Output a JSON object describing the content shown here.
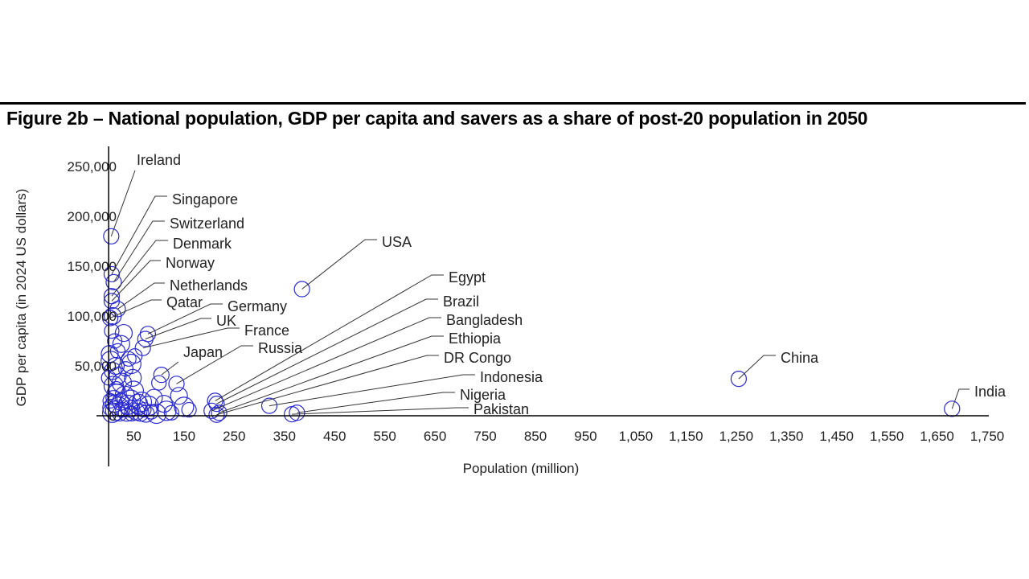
{
  "figure": {
    "title": "Figure 2b – National population, GDP per capita and savers as a share of post-20 population in 2050"
  },
  "colors": {
    "marker": "#2b2bd1",
    "axis": "#000000",
    "leader": "#333333"
  },
  "chart_data": {
    "type": "scatter",
    "title": "Figure 2b – National population, GDP per capita and savers as a share of post-20 population in 2050",
    "xlabel": "Population  (million)",
    "ylabel": "GDP per capita (in 2024 US dollars)",
    "xlim": [
      -50,
      1750
    ],
    "ylim": [
      0,
      250000
    ],
    "x_ticks": [
      "50",
      "150",
      "250",
      "350",
      "450",
      "550",
      "650",
      "750",
      "850",
      "950",
      "1,050",
      "1,150",
      "1,250",
      "1,350",
      "1,450",
      "1,550",
      "1,650",
      "1,750"
    ],
    "x_tick_values": [
      50,
      150,
      250,
      350,
      450,
      550,
      650,
      750,
      850,
      950,
      1050,
      1150,
      1250,
      1350,
      1450,
      1550,
      1650,
      1750
    ],
    "y_ticks": [
      "0",
      "50,000",
      "100,000",
      "150,000",
      "200,000",
      "250,000"
    ],
    "y_tick_values": [
      0,
      50000,
      100000,
      150000,
      200000,
      250000
    ],
    "grid": false,
    "legend": "none",
    "labeled_points": [
      {
        "name": "Ireland",
        "x": 5,
        "y": 180000
      },
      {
        "name": "Singapore",
        "x": 6,
        "y": 142000
      },
      {
        "name": "Switzerland",
        "x": 10,
        "y": 134000
      },
      {
        "name": "Denmark",
        "x": 6,
        "y": 120000
      },
      {
        "name": "Norway",
        "x": 6,
        "y": 115000
      },
      {
        "name": "Netherlands",
        "x": 18,
        "y": 107000
      },
      {
        "name": "Qatar",
        "x": 3,
        "y": 98000
      },
      {
        "name": "Germany",
        "x": 78,
        "y": 82000
      },
      {
        "name": "UK",
        "x": 73,
        "y": 77000
      },
      {
        "name": "France",
        "x": 68,
        "y": 68000
      },
      {
        "name": "Japan",
        "x": 105,
        "y": 41000
      },
      {
        "name": "Russia",
        "x": 135,
        "y": 32000
      },
      {
        "name": "USA",
        "x": 385,
        "y": 127000
      },
      {
        "name": "Egypt",
        "x": 212,
        "y": 15000
      },
      {
        "name": "Brazil",
        "x": 215,
        "y": 12000
      },
      {
        "name": "Bangladesh",
        "x": 205,
        "y": 5000
      },
      {
        "name": "Ethiopia",
        "x": 220,
        "y": 3000
      },
      {
        "name": "DR Congo",
        "x": 215,
        "y": 1000
      },
      {
        "name": "Indonesia",
        "x": 320,
        "y": 10000
      },
      {
        "name": "Nigeria",
        "x": 375,
        "y": 3000
      },
      {
        "name": "Pakistan",
        "x": 365,
        "y": 1500
      },
      {
        "name": "China",
        "x": 1255,
        "y": 37000
      },
      {
        "name": "India",
        "x": 1680,
        "y": 7000
      }
    ],
    "other_points": [
      {
        "x": 0,
        "y": 38000
      },
      {
        "x": 2,
        "y": 62000
      },
      {
        "x": 4,
        "y": 55000
      },
      {
        "x": 6,
        "y": 85000
      },
      {
        "x": 8,
        "y": 45000
      },
      {
        "x": 10,
        "y": 30000
      },
      {
        "x": 12,
        "y": 75000
      },
      {
        "x": 14,
        "y": 50000
      },
      {
        "x": 16,
        "y": 22000
      },
      {
        "x": 3,
        "y": 15000
      },
      {
        "x": 5,
        "y": 8000
      },
      {
        "x": 7,
        "y": 3000
      },
      {
        "x": 9,
        "y": 18000
      },
      {
        "x": 11,
        "y": 12000
      },
      {
        "x": 13,
        "y": 5000
      },
      {
        "x": 15,
        "y": 27000
      },
      {
        "x": 18,
        "y": 40000
      },
      {
        "x": 20,
        "y": 9000
      },
      {
        "x": 22,
        "y": 2000
      },
      {
        "x": 24,
        "y": 14000
      },
      {
        "x": 26,
        "y": 33000
      },
      {
        "x": 28,
        "y": 6000
      },
      {
        "x": 30,
        "y": 83000
      },
      {
        "x": 32,
        "y": 20000
      },
      {
        "x": 34,
        "y": 47000
      },
      {
        "x": 36,
        "y": 3000
      },
      {
        "x": 38,
        "y": 11000
      },
      {
        "x": 40,
        "y": 57000
      },
      {
        "x": 42,
        "y": 7000
      },
      {
        "x": 44,
        "y": 16000
      },
      {
        "x": 46,
        "y": 2000
      },
      {
        "x": 48,
        "y": 38000
      },
      {
        "x": 50,
        "y": 25000
      },
      {
        "x": 52,
        "y": 60000
      },
      {
        "x": 55,
        "y": 4000
      },
      {
        "x": 58,
        "y": 12000
      },
      {
        "x": 60,
        "y": 8000
      },
      {
        "x": 63,
        "y": 3000
      },
      {
        "x": 66,
        "y": 14000
      },
      {
        "x": 70,
        "y": 6000
      },
      {
        "x": 74,
        "y": 2000
      },
      {
        "x": 80,
        "y": 10000
      },
      {
        "x": 85,
        "y": 4000
      },
      {
        "x": 90,
        "y": 18000
      },
      {
        "x": 95,
        "y": 2000
      },
      {
        "x": 100,
        "y": 33000
      },
      {
        "x": 110,
        "y": 12000
      },
      {
        "x": 115,
        "y": 5000
      },
      {
        "x": 125,
        "y": 3000
      },
      {
        "x": 140,
        "y": 20000
      },
      {
        "x": 150,
        "y": 9000
      },
      {
        "x": 160,
        "y": 6000
      },
      {
        "x": 25,
        "y": 72000
      },
      {
        "x": 45,
        "y": 52000
      },
      {
        "x": 18,
        "y": 65000
      },
      {
        "x": 8,
        "y": 100000
      }
    ]
  }
}
